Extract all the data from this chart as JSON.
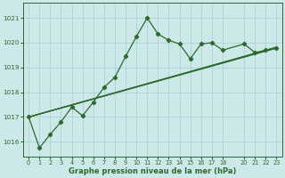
{
  "title": "Graphe pression niveau de la mer (hPa)",
  "bg_color": "#cce8e8",
  "grid_color": "#aad4d4",
  "line_color": "#2d6a2d",
  "xlim": [
    -0.5,
    23.5
  ],
  "ylim": [
    1015.4,
    1021.6
  ],
  "yticks": [
    1016,
    1017,
    1018,
    1019,
    1020,
    1021
  ],
  "xticks": [
    0,
    1,
    2,
    3,
    4,
    5,
    6,
    7,
    8,
    9,
    10,
    11,
    12,
    13,
    14,
    15,
    16,
    17,
    18,
    20,
    21,
    22,
    23
  ],
  "line1_x": [
    0,
    1,
    2,
    3,
    4,
    5,
    6,
    7,
    8,
    9,
    10,
    11,
    12,
    13,
    14,
    15,
    16,
    17,
    18,
    20,
    21,
    22,
    23
  ],
  "line1_y": [
    1017.0,
    1015.75,
    1016.3,
    1016.8,
    1017.4,
    1017.05,
    1017.6,
    1018.2,
    1018.6,
    1019.45,
    1020.25,
    1021.0,
    1020.35,
    1020.1,
    1019.95,
    1019.35,
    1019.95,
    1020.0,
    1019.7,
    1019.95,
    1019.6,
    1019.7,
    1019.8
  ],
  "line2_x": [
    0,
    23
  ],
  "line2_y": [
    1017.0,
    1019.8
  ],
  "line3_x": [
    0,
    23
  ],
  "line3_y": [
    1017.0,
    1019.82
  ],
  "line4_x": [
    0,
    23
  ],
  "line4_y": [
    1017.0,
    1019.78
  ]
}
